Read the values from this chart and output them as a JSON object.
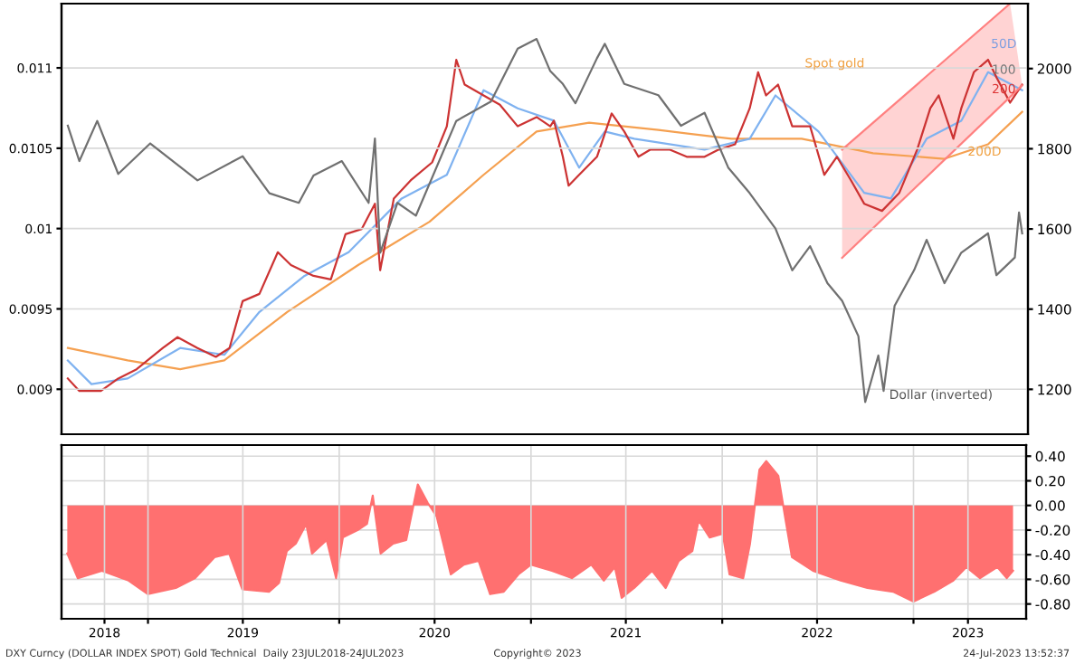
{
  "chart_data": [
    {
      "type": "line",
      "xlim": [
        "2018-07-20",
        "2023-08-04"
      ],
      "ylim": [
        0.00872,
        0.0114
      ],
      "yticks": [
        0.009,
        0.0095,
        0.01,
        0.0105,
        0.011
      ],
      "y2lim": [
        1088,
        2162
      ],
      "y2ticks": [
        1200,
        1400,
        1600,
        1800,
        2000
      ],
      "grid": "y",
      "legend": false,
      "series": [
        {
          "color": "#707070",
          "x": [
            "2018-08-01",
            "2018-08-23",
            "2018-09-26",
            "2018-11-05",
            "2019-01-05",
            "2019-04-05",
            "2019-06-30",
            "2019-08-20",
            "2019-10-15",
            "2019-11-12",
            "2020-01-05",
            "2020-02-25",
            "2020-03-08",
            "2020-03-18",
            "2020-04-20",
            "2020-05-25",
            "2020-08-10",
            "2020-10-15",
            "2020-12-05",
            "2021-01-10",
            "2021-02-05",
            "2021-03-01",
            "2021-03-25",
            "2021-05-05",
            "2021-05-20",
            "2021-06-26",
            "2021-08-30",
            "2021-10-12",
            "2021-11-26",
            "2022-01-10",
            "2022-02-20",
            "2022-04-10",
            "2022-05-12",
            "2022-06-15",
            "2022-07-18",
            "2022-08-15",
            "2022-09-15",
            "2022-09-28",
            "2022-10-23",
            "2022-11-02",
            "2022-11-23",
            "2022-12-30",
            "2023-01-23",
            "2023-02-26",
            "2023-03-30",
            "2023-05-20",
            "2023-06-05",
            "2023-07-10",
            "2023-07-18",
            "2023-07-24"
          ],
          "values": [
            0.01064,
            0.01042,
            0.01067,
            0.01034,
            0.01053,
            0.0103,
            0.01045,
            0.01022,
            0.01016,
            0.01033,
            0.01042,
            0.01016,
            0.01056,
            0.00985,
            0.01016,
            0.01008,
            0.01067,
            0.01079,
            0.01112,
            0.01118,
            0.01098,
            0.0109,
            0.01078,
            0.01106,
            0.01115,
            0.0109,
            0.01083,
            0.01064,
            0.01072,
            0.01038,
            0.01022,
            0.01,
            0.00974,
            0.00989,
            0.00966,
            0.00955,
            0.00933,
            0.00892,
            0.00921,
            0.00899,
            0.00952,
            0.00974,
            0.00993,
            0.00966,
            0.00985,
            0.00997,
            0.00971,
            0.00982,
            0.0101,
            0.00997
          ]
        },
        {
          "axis": "y2",
          "color": "#f5a050",
          "x": [
            "2018-08-01",
            "2018-11-23",
            "2019-03-03",
            "2019-05-26",
            "2019-09-23",
            "2020-02-05",
            "2020-06-20",
            "2020-10-01",
            "2021-01-10",
            "2021-04-20",
            "2021-08-30",
            "2022-01-16",
            "2022-05-30",
            "2022-10-13",
            "2023-02-26",
            "2023-05-20",
            "2023-07-24"
          ],
          "values": [
            1303,
            1272,
            1250,
            1272,
            1393,
            1510,
            1618,
            1735,
            1843,
            1865,
            1847,
            1825,
            1825,
            1789,
            1775,
            1811,
            1892
          ]
        },
        {
          "axis": "y2",
          "color": "#7fb2f0",
          "x": [
            "2018-08-01",
            "2018-09-15",
            "2018-11-23",
            "2019-03-03",
            "2019-05-26",
            "2019-08-01",
            "2019-10-26",
            "2020-01-18",
            "2020-04-28",
            "2020-07-23",
            "2020-10-01",
            "2020-12-05",
            "2021-02-12",
            "2021-04-01",
            "2021-05-20",
            "2021-07-15",
            "2021-11-26",
            "2022-02-20",
            "2022-04-10",
            "2022-07-01",
            "2022-09-26",
            "2022-11-16",
            "2023-01-23",
            "2023-03-30",
            "2023-05-20",
            "2023-07-24"
          ],
          "values": [
            1272,
            1213,
            1227,
            1303,
            1286,
            1393,
            1483,
            1542,
            1676,
            1735,
            1946,
            1901,
            1870,
            1753,
            1843,
            1825,
            1798,
            1825,
            1933,
            1843,
            1690,
            1676,
            1825,
            1870,
            1991,
            1946
          ]
        },
        {
          "axis": "y2",
          "color": "#cc3333",
          "x": [
            "2018-08-01",
            "2018-08-23",
            "2018-10-03",
            "2018-11-05",
            "2018-12-10",
            "2019-01-29",
            "2019-02-26",
            "2019-04-05",
            "2019-05-10",
            "2019-06-05",
            "2019-06-30",
            "2019-08-01",
            "2019-09-05",
            "2019-09-30",
            "2019-11-12",
            "2019-12-15",
            "2020-01-12",
            "2020-02-12",
            "2020-03-08",
            "2020-03-18",
            "2020-04-13",
            "2020-05-15",
            "2020-06-25",
            "2020-07-23",
            "2020-08-10",
            "2020-08-26",
            "2020-10-01",
            "2020-11-01",
            "2020-12-05",
            "2021-01-10",
            "2021-02-05",
            "2021-02-12",
            "2021-03-01",
            "2021-03-12",
            "2021-04-01",
            "2021-05-05",
            "2021-06-02",
            "2021-06-26",
            "2021-07-23",
            "2021-08-15",
            "2021-09-20",
            "2021-10-23",
            "2021-11-26",
            "2021-12-23",
            "2022-01-23",
            "2022-02-20",
            "2022-03-08",
            "2022-03-23",
            "2022-04-15",
            "2022-05-12",
            "2022-06-15",
            "2022-07-12",
            "2022-08-05",
            "2022-09-01",
            "2022-09-26",
            "2022-10-30",
            "2022-12-02",
            "2023-01-05",
            "2023-01-30",
            "2023-02-15",
            "2023-03-15",
            "2023-03-30",
            "2023-04-23",
            "2023-05-20",
            "2023-06-05",
            "2023-07-01",
            "2023-07-24"
          ],
          "values": [
            1227,
            1196,
            1196,
            1227,
            1250,
            1303,
            1330,
            1303,
            1281,
            1303,
            1420,
            1438,
            1542,
            1510,
            1483,
            1474,
            1587,
            1600,
            1663,
            1497,
            1676,
            1721,
            1766,
            1856,
            2022,
            1960,
            1933,
            1910,
            1856,
            1879,
            1856,
            1870,
            1780,
            1708,
            1735,
            1780,
            1888,
            1843,
            1780,
            1798,
            1798,
            1780,
            1780,
            1798,
            1811,
            1901,
            1991,
            1933,
            1960,
            1856,
            1856,
            1735,
            1780,
            1721,
            1663,
            1645,
            1690,
            1798,
            1901,
            1933,
            1825,
            1901,
            1991,
            2022,
            1978,
            1915,
            1960
          ]
        },
        {
          "axis": "y2",
          "color": "#ff8080",
          "x": [
            "2022-08-15",
            "2023-07-01"
          ],
          "values": [
            1798,
            2162
          ]
        },
        {
          "axis": "y2",
          "color": "#ff8080",
          "x": [
            "2022-08-15",
            "2023-07-24"
          ],
          "values": [
            1528,
            1958
          ]
        }
      ],
      "annotations": [
        "Spot gold",
        "50D",
        "100",
        "200",
        "200D",
        "Dollar (inverted)"
      ]
    },
    {
      "type": "area",
      "xlim": [
        "2018-07-20",
        "2023-08-04"
      ],
      "y2lim": [
        -0.92,
        0.49
      ],
      "y2ticks": [
        {
          "value": 0.4,
          "label": "0.40"
        },
        {
          "value": 0.2,
          "label": "0.20"
        },
        {
          "value": 0,
          "label": "0.00"
        },
        {
          "value": -0.2,
          "label": "-0.20"
        },
        {
          "value": -0.4,
          "label": "-0.40"
        },
        {
          "value": -0.6,
          "label": "-0.60"
        },
        {
          "value": -0.8,
          "label": "-0.80"
        }
      ],
      "xticks": [
        {
          "value": "2019-01-01",
          "label": null
        },
        {
          "value": "2020-01-01",
          "label": null
        },
        {
          "value": "2021-01-01",
          "label": null
        },
        {
          "value": "2022-01-01",
          "label": null
        },
        {
          "value": "2023-01-01",
          "label": null
        },
        {
          "value": "2018-10-10",
          "label": "2018"
        },
        {
          "value": "2019-07-01",
          "label": "2019"
        },
        {
          "value": "2020-07-01",
          "label": "2020"
        },
        {
          "value": "2021-07-01",
          "label": "2021"
        },
        {
          "value": "2022-07-01",
          "label": "2022"
        },
        {
          "value": "2023-04-15",
          "label": "2023"
        }
      ],
      "grid": true,
      "legend": false,
      "series": [
        {
          "axis": "y2",
          "color": "#ff7070",
          "x": [
            "2018-07-31",
            "2018-08-20",
            "2018-10-05",
            "2018-11-25",
            "2019-01-01",
            "2019-02-23",
            "2019-04-01",
            "2019-05-08",
            "2019-06-05",
            "2019-06-30",
            "2019-08-20",
            "2019-09-08",
            "2019-09-23",
            "2019-10-10",
            "2019-10-30",
            "2019-11-10",
            "2019-12-08",
            "2019-12-26",
            "2020-01-08",
            "2020-02-05",
            "2020-02-23",
            "2020-03-05",
            "2020-03-20",
            "2020-04-13",
            "2020-05-08",
            "2020-05-30",
            "2020-06-18",
            "2020-07-05",
            "2020-08-01",
            "2020-08-26",
            "2020-09-23",
            "2020-10-15",
            "2020-11-10",
            "2020-12-08",
            "2021-01-01",
            "2021-02-10",
            "2021-03-20",
            "2021-04-26",
            "2021-05-20",
            "2021-06-10",
            "2021-06-23",
            "2021-07-17",
            "2021-08-20",
            "2021-09-15",
            "2021-10-10",
            "2021-11-05",
            "2021-11-17",
            "2021-12-08",
            "2022-01-02",
            "2022-01-15",
            "2022-02-10",
            "2022-02-23",
            "2022-03-13",
            "2022-03-26",
            "2022-04-18",
            "2022-05-02",
            "2022-05-14",
            "2022-06-23",
            "2022-08-15",
            "2022-10-05",
            "2022-11-23",
            "2023-01-01",
            "2023-02-10",
            "2023-03-18",
            "2023-04-12",
            "2023-05-08",
            "2023-06-10",
            "2023-06-28",
            "2023-07-10"
          ],
          "values": [
            -0.39,
            -0.59,
            -0.53,
            -0.61,
            -0.72,
            -0.67,
            -0.59,
            -0.42,
            -0.39,
            -0.68,
            -0.7,
            -0.63,
            -0.37,
            -0.31,
            -0.15,
            -0.39,
            -0.28,
            -0.59,
            -0.26,
            -0.2,
            -0.15,
            0.08,
            -0.39,
            -0.31,
            -0.28,
            0.17,
            0.02,
            -0.09,
            -0.56,
            -0.48,
            -0.45,
            -0.72,
            -0.7,
            -0.56,
            -0.48,
            -0.53,
            -0.59,
            -0.48,
            -0.61,
            -0.5,
            -0.75,
            -0.67,
            -0.53,
            -0.67,
            -0.45,
            -0.37,
            -0.12,
            -0.26,
            -0.23,
            -0.56,
            -0.59,
            -0.31,
            0.29,
            0.36,
            0.24,
            -0.12,
            -0.42,
            -0.53,
            -0.61,
            -0.67,
            -0.7,
            -0.78,
            -0.7,
            -0.61,
            -0.5,
            -0.59,
            -0.5,
            -0.59,
            -0.53
          ]
        }
      ],
      "annotations": [
        "DXY Curncy (DOLLAR INDEX SPOT) Gold Technical  Daily 23JUL2018-24JUL2023",
        "Copyright© 2023",
        "24-Jul-2023 13:52:37"
      ]
    }
  ]
}
